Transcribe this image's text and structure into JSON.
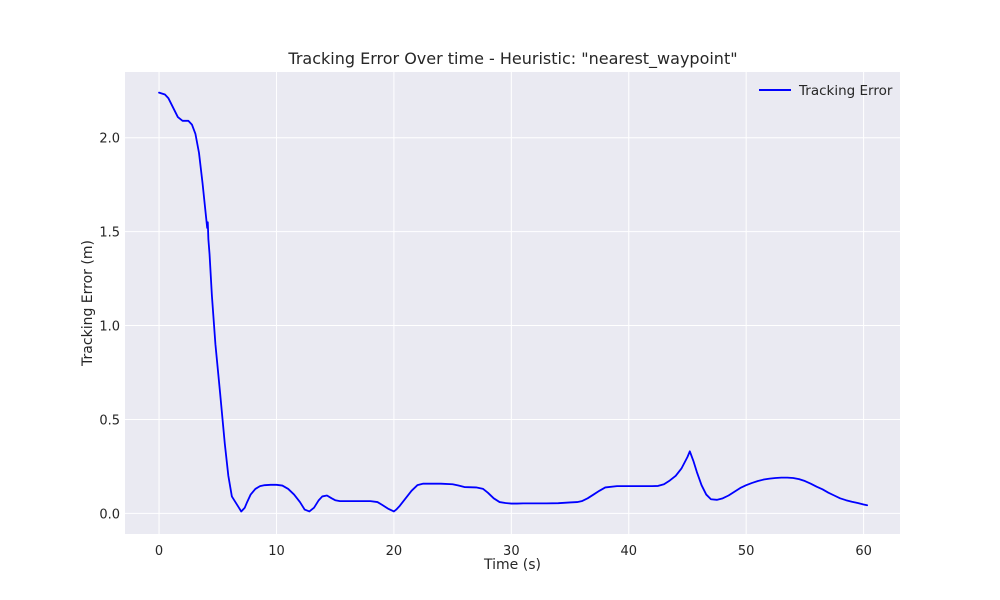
{
  "chart_data": {
    "type": "line",
    "title": "Tracking Error Over time - Heuristic: \"nearest_waypoint\"",
    "xlabel": "Time (s)",
    "ylabel": "Tracking Error (m)",
    "xlim": [
      -2.9,
      63.1
    ],
    "ylim": [
      -0.11,
      2.35
    ],
    "xticks": [
      0,
      10,
      20,
      30,
      40,
      50,
      60
    ],
    "xtick_labels": [
      "0",
      "10",
      "20",
      "30",
      "40",
      "50",
      "60"
    ],
    "yticks": [
      0.0,
      0.5,
      1.0,
      1.5,
      2.0
    ],
    "ytick_labels": [
      "0.0",
      "0.5",
      "1.0",
      "1.5",
      "2.0"
    ],
    "grid": true,
    "legend": {
      "position": "top-right",
      "entries": [
        "Tracking Error"
      ]
    },
    "colors": {
      "plot_background": "#eaeaf2",
      "grid": "#ffffff",
      "series": "#0000ff"
    },
    "series": [
      {
        "name": "Tracking Error",
        "x": [
          0,
          0.5,
          0.8,
          1.2,
          1.6,
          2.0,
          2.5,
          2.8,
          3.1,
          3.4,
          3.7,
          4.0,
          4.1,
          4.15,
          4.2,
          4.3,
          4.5,
          4.8,
          5.2,
          5.6,
          5.9,
          6.2,
          6.5,
          6.8,
          7.0,
          7.3,
          7.5,
          7.8,
          8.2,
          8.6,
          9.0,
          9.5,
          10.0,
          10.5,
          11.0,
          11.5,
          12.0,
          12.4,
          12.8,
          13.2,
          13.4,
          13.6,
          13.9,
          14.3,
          14.7,
          15.0,
          15.4,
          15.8,
          16.2,
          17.0,
          18.0,
          18.6,
          19.0,
          19.5,
          20.0,
          20.2,
          20.5,
          21.0,
          21.5,
          22.0,
          22.5,
          23.0,
          24.0,
          25.0,
          25.5,
          26.0,
          27.0,
          27.6,
          28.0,
          28.5,
          29.0,
          29.5,
          30.0,
          30.5,
          31.0,
          32.0,
          33.0,
          34.0,
          35.0,
          35.6,
          36.0,
          36.5,
          37.0,
          37.5,
          38.0,
          39.0,
          40.0,
          41.0,
          42.0,
          42.5,
          43.0,
          43.5,
          44.0,
          44.5,
          45.0,
          45.2,
          45.5,
          45.8,
          46.2,
          46.6,
          47.0,
          47.5,
          48.0,
          48.5,
          49.0,
          49.5,
          50.0,
          50.5,
          51.0,
          51.5,
          52.0,
          52.5,
          53.0,
          53.5,
          54.0,
          54.5,
          55.0,
          55.5,
          56.0,
          56.5,
          57.0,
          57.5,
          58.0,
          58.5,
          59.0,
          59.5,
          60.0,
          60.3
        ],
        "y": [
          2.24,
          2.23,
          2.21,
          2.16,
          2.11,
          2.09,
          2.09,
          2.07,
          2.02,
          1.92,
          1.76,
          1.58,
          1.52,
          1.55,
          1.46,
          1.38,
          1.16,
          0.9,
          0.64,
          0.37,
          0.2,
          0.09,
          0.06,
          0.03,
          0.01,
          0.03,
          0.06,
          0.1,
          0.13,
          0.145,
          0.15,
          0.152,
          0.152,
          0.148,
          0.13,
          0.1,
          0.06,
          0.02,
          0.01,
          0.03,
          0.05,
          0.07,
          0.09,
          0.095,
          0.08,
          0.07,
          0.065,
          0.065,
          0.065,
          0.065,
          0.065,
          0.06,
          0.045,
          0.025,
          0.01,
          0.02,
          0.04,
          0.08,
          0.12,
          0.15,
          0.158,
          0.158,
          0.158,
          0.155,
          0.148,
          0.14,
          0.138,
          0.13,
          0.11,
          0.08,
          0.06,
          0.055,
          0.052,
          0.052,
          0.053,
          0.053,
          0.053,
          0.054,
          0.058,
          0.06,
          0.065,
          0.08,
          0.1,
          0.12,
          0.138,
          0.145,
          0.145,
          0.145,
          0.145,
          0.146,
          0.155,
          0.175,
          0.2,
          0.24,
          0.3,
          0.33,
          0.28,
          0.22,
          0.15,
          0.1,
          0.075,
          0.072,
          0.08,
          0.095,
          0.115,
          0.135,
          0.15,
          0.162,
          0.172,
          0.18,
          0.185,
          0.188,
          0.19,
          0.19,
          0.188,
          0.182,
          0.172,
          0.158,
          0.142,
          0.128,
          0.11,
          0.095,
          0.08,
          0.07,
          0.062,
          0.055,
          0.047,
          0.043
        ]
      }
    ]
  }
}
